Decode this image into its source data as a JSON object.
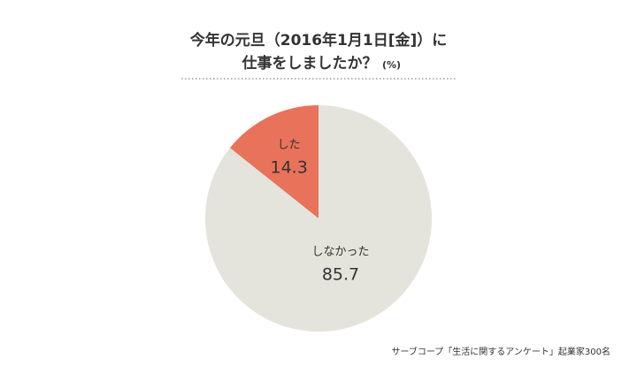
{
  "chart_data": {
    "type": "pie",
    "title_lines": [
      "今年の元旦（2016年1月1日[金]）に",
      "仕事をしましたか？"
    ],
    "unit": "(%)",
    "categories": [
      "した",
      "しなかった"
    ],
    "values": [
      14.3,
      85.7
    ],
    "colors": [
      "#e8735a",
      "#e4e4dc"
    ],
    "source": "サーブコープ「生活に関するアンケート」起業家300名"
  }
}
